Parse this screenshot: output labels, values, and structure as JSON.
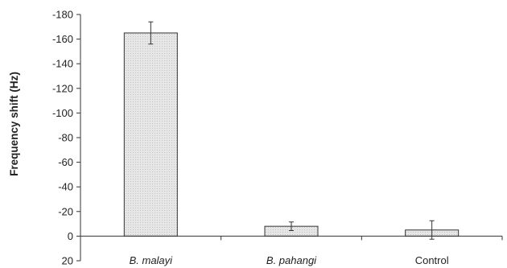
{
  "chart_data": {
    "type": "bar",
    "title": "",
    "xlabel": "",
    "ylabel": "Frequency shift (Hz)",
    "y_axis_inverted": true,
    "ylim": [
      20,
      -180
    ],
    "yticks": [
      20,
      0,
      -20,
      -40,
      -60,
      -80,
      -100,
      -120,
      -140,
      -160,
      -180
    ],
    "ytick_labels": [
      "20",
      "0",
      "-20",
      "-40",
      "-60",
      "-80",
      "-100",
      "-120",
      "-140",
      "-160",
      "-180"
    ],
    "categories": [
      "B. malayi",
      "B. pahangi",
      "Control"
    ],
    "category_italic": [
      true,
      true,
      false
    ],
    "values": [
      -165,
      -8,
      -5
    ],
    "errors": [
      9,
      3.5,
      7.5
    ],
    "grid": false,
    "bar_color": "#e6e6e6",
    "bar_edge_color": "#333333"
  }
}
